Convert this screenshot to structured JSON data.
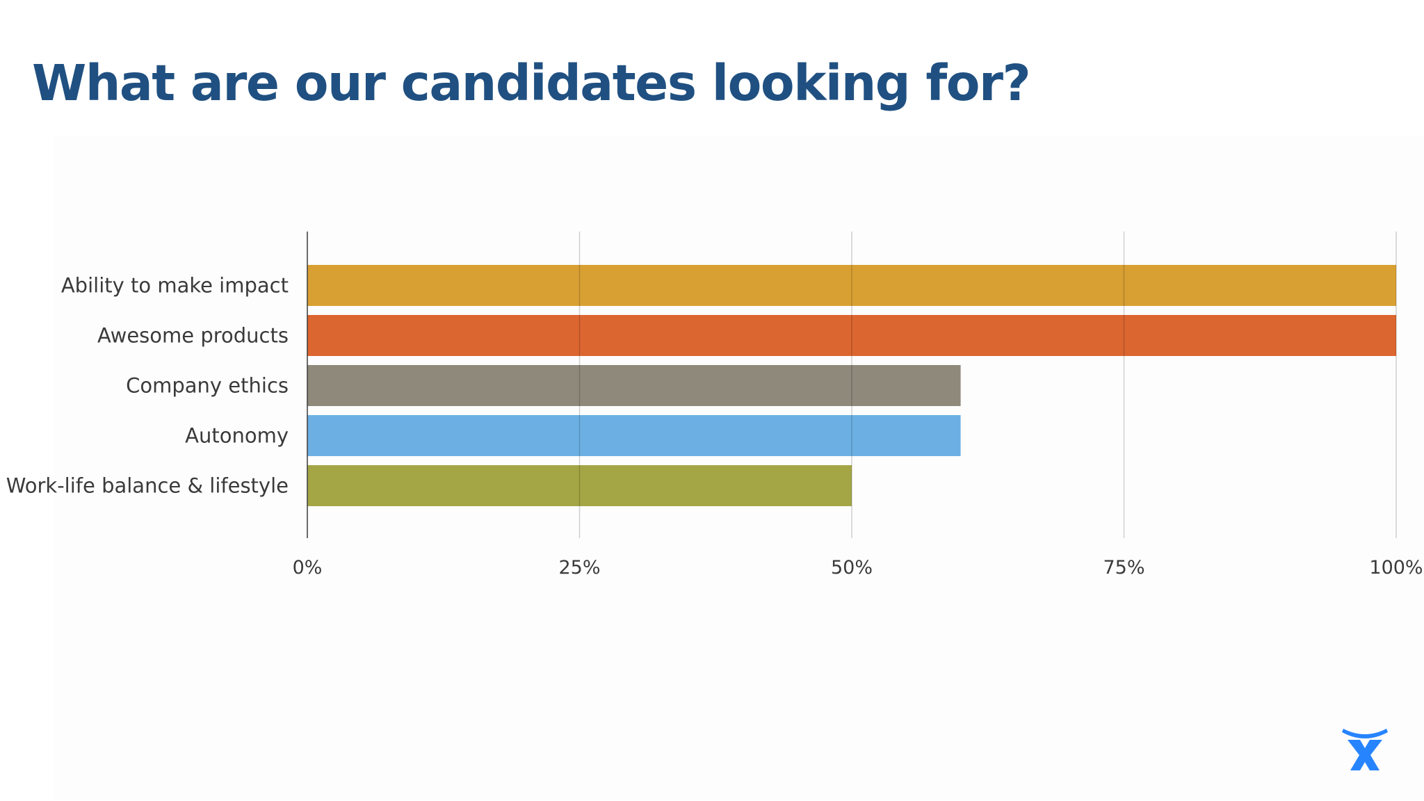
{
  "slide": {
    "title": "What are our candidates looking for?"
  },
  "chart_data": {
    "type": "bar",
    "orientation": "horizontal",
    "title": "",
    "xlabel": "",
    "ylabel": "",
    "categories": [
      "Ability to make impact",
      "Awesome products",
      "Company ethics",
      "Autonomy",
      "Work-life balance & lifestyle"
    ],
    "values": [
      100,
      100,
      60,
      60,
      50
    ],
    "colors": [
      "#D8A033",
      "#DC6630",
      "#8E897A",
      "#6CB0E3",
      "#A4A646"
    ],
    "xlim": [
      0,
      100
    ],
    "x_ticks": [
      0,
      25,
      50,
      75,
      100
    ],
    "x_tick_labels": [
      "0%",
      "25%",
      "50%",
      "75%",
      "100%"
    ],
    "grid": "vertical",
    "legend": "none"
  },
  "logo": {
    "icon": "atlassian-logo-icon",
    "color": "#2684FF"
  }
}
